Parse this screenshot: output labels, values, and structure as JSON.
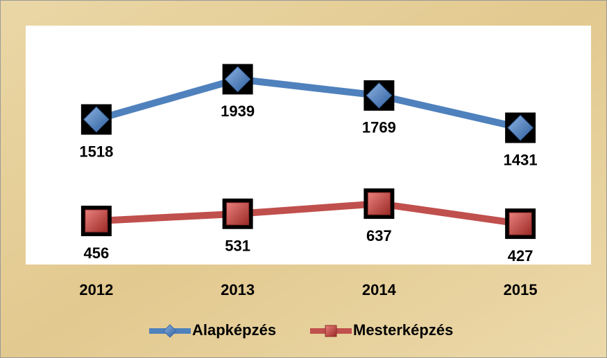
{
  "chart_data": {
    "type": "line",
    "categories": [
      "2012",
      "2013",
      "2014",
      "2015"
    ],
    "series": [
      {
        "name": "Alapképzés",
        "color": "#4f81bd",
        "values": [
          1518,
          1939,
          1769,
          1431
        ]
      },
      {
        "name": "Mesterképzés",
        "color": "#c0504d",
        "values": [
          456,
          531,
          637,
          427
        ]
      }
    ],
    "ylim": [
      0,
      2500
    ],
    "legend": "bottom"
  }
}
